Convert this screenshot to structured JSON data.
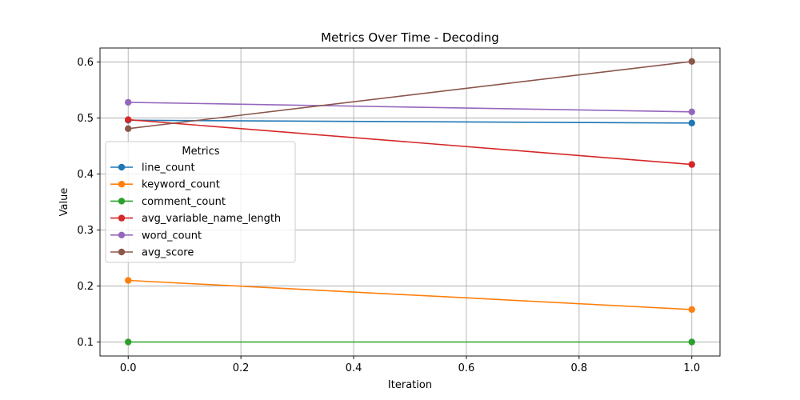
{
  "chart_data": {
    "type": "line",
    "title": "Metrics Over Time - Decoding",
    "xlabel": "Iteration",
    "ylabel": "Value",
    "xlim": [
      -0.05,
      1.05
    ],
    "ylim": [
      0.075,
      0.625
    ],
    "xticks": [
      0.0,
      0.2,
      0.4,
      0.6,
      0.8,
      1.0
    ],
    "xtick_labels": [
      "0.0",
      "0.2",
      "0.4",
      "0.6",
      "0.8",
      "1.0"
    ],
    "yticks": [
      0.1,
      0.2,
      0.3,
      0.4,
      0.5,
      0.6
    ],
    "ytick_labels": [
      "0.1",
      "0.2",
      "0.3",
      "0.4",
      "0.5",
      "0.6"
    ],
    "grid": true,
    "legend": {
      "title": "Metrics",
      "placement": "center-left"
    },
    "x": [
      0,
      1
    ],
    "series": [
      {
        "name": "line_count",
        "color": "#1f77b4",
        "values": [
          0.496,
          0.491
        ]
      },
      {
        "name": "keyword_count",
        "color": "#ff7f0e",
        "values": [
          0.21,
          0.158
        ]
      },
      {
        "name": "comment_count",
        "color": "#2ca02c",
        "values": [
          0.1,
          0.1
        ]
      },
      {
        "name": "avg_variable_name_length",
        "color": "#d62728",
        "values": [
          0.497,
          0.417
        ]
      },
      {
        "name": "word_count",
        "color": "#9467bd",
        "values": [
          0.528,
          0.511
        ]
      },
      {
        "name": "avg_score",
        "color": "#8c564b",
        "values": [
          0.481,
          0.601
        ]
      }
    ]
  }
}
